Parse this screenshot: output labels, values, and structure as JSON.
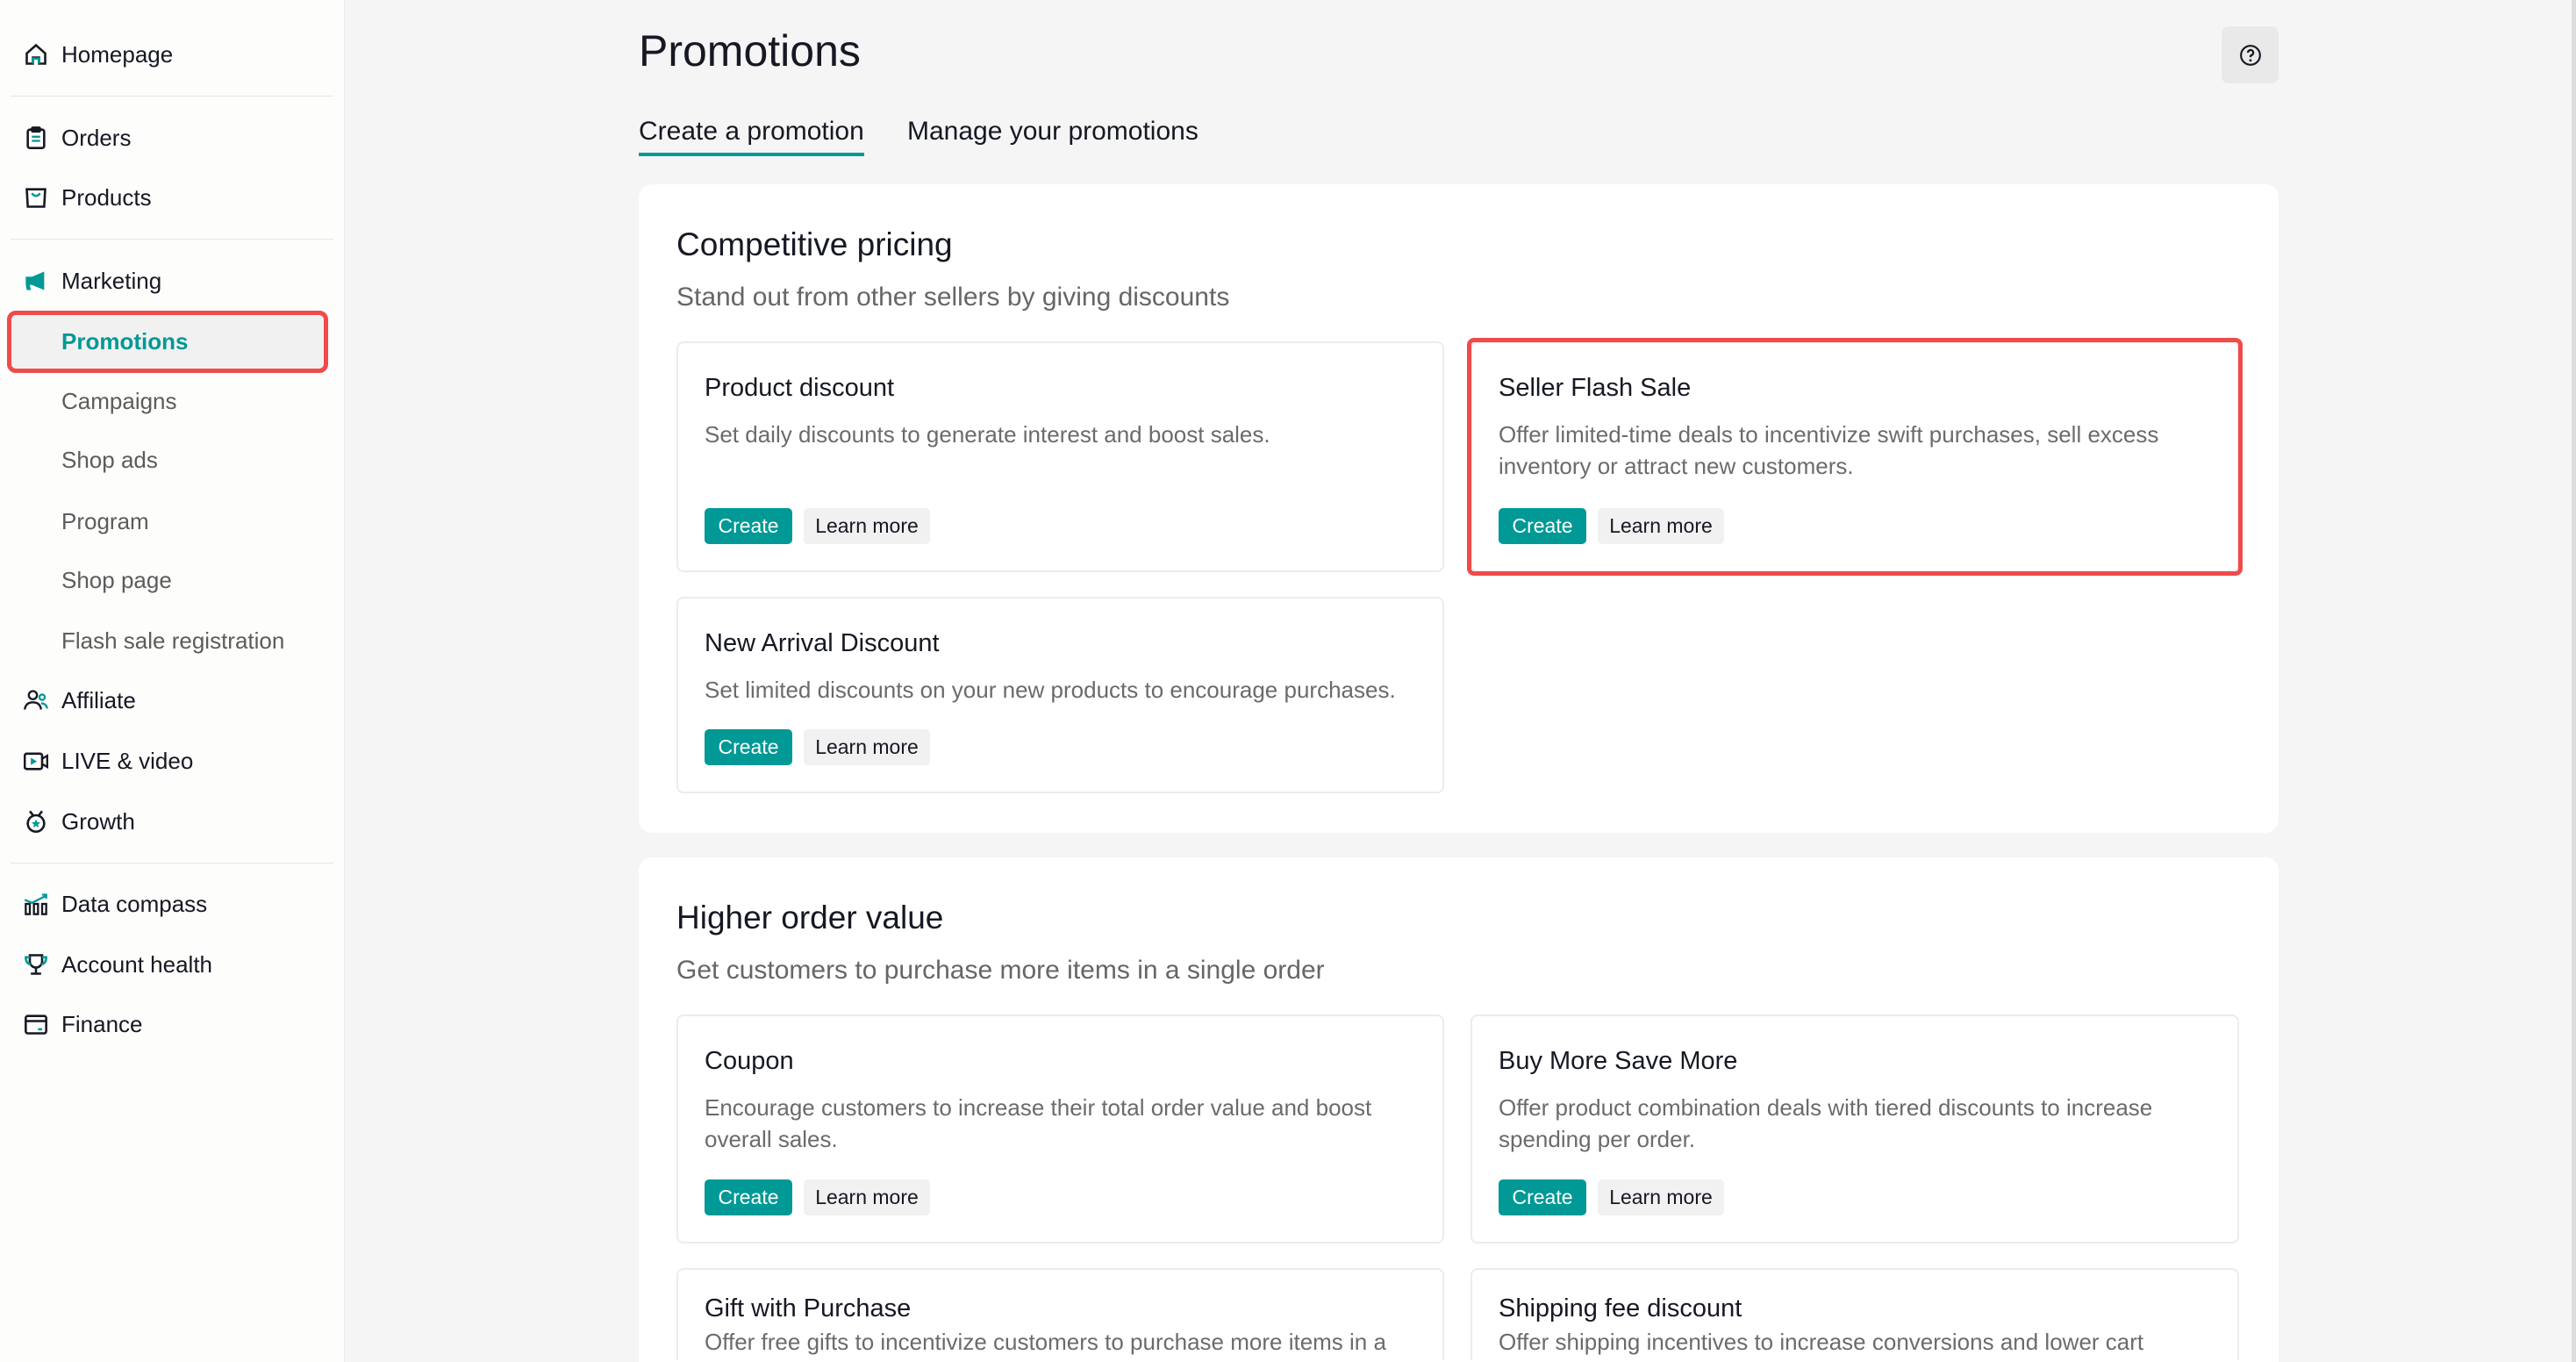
{
  "sidebar": {
    "items": [
      {
        "label": "Homepage",
        "icon": "home-icon"
      },
      {
        "label": "Orders",
        "icon": "clipboard-icon"
      },
      {
        "label": "Products",
        "icon": "shopping-bag-icon"
      },
      {
        "label": "Marketing",
        "icon": "megaphone-icon"
      },
      {
        "label": "Promotions",
        "active": true
      },
      {
        "label": "Campaigns"
      },
      {
        "label": "Shop ads"
      },
      {
        "label": "Program"
      },
      {
        "label": "Shop page"
      },
      {
        "label": "Flash sale registration"
      },
      {
        "label": "Affiliate",
        "icon": "people-icon"
      },
      {
        "label": "LIVE & video",
        "icon": "video-camera-icon"
      },
      {
        "label": "Growth",
        "icon": "medal-icon"
      },
      {
        "label": "Data compass",
        "icon": "bar-chart-icon"
      },
      {
        "label": "Account health",
        "icon": "trophy-icon"
      },
      {
        "label": "Finance",
        "icon": "card-icon"
      }
    ]
  },
  "header": {
    "title": "Promotions",
    "help_icon": "help-circle-icon"
  },
  "tabs": [
    {
      "label": "Create a promotion",
      "active": true
    },
    {
      "label": "Manage your promotions"
    }
  ],
  "colors": {
    "accent": "#009995",
    "highlight": "#f04b4b"
  },
  "sections": [
    {
      "title": "Competitive pricing",
      "subtitle": "Stand out from other sellers by giving discounts",
      "tiles": [
        {
          "title": "Product discount",
          "desc": "Set daily discounts to generate interest and boost sales.",
          "create": "Create",
          "learn": "Learn more"
        },
        {
          "title": "Seller Flash Sale",
          "desc": "Offer limited-time deals to incentivize swift purchases, sell excess inventory or attract new customers.",
          "create": "Create",
          "learn": "Learn more"
        },
        {
          "title": "New Arrival Discount",
          "desc": "Set limited discounts on your new products to encourage purchases.",
          "create": "Create",
          "learn": "Learn more"
        }
      ]
    },
    {
      "title": "Higher order value",
      "subtitle": "Get customers to purchase more items in a single order",
      "tiles": [
        {
          "title": "Coupon",
          "desc": "Encourage customers to increase their total order value and boost overall sales.",
          "create": "Create",
          "learn": "Learn more"
        },
        {
          "title": "Buy More Save More",
          "desc": "Offer product combination deals with tiered discounts to increase spending per order.",
          "create": "Create",
          "learn": "Learn more"
        },
        {
          "title": "Gift with Purchase",
          "desc": "Offer free gifts to incentivize customers to purchase more items in a"
        },
        {
          "title": "Shipping fee discount",
          "desc": "Offer shipping incentives to increase conversions and lower cart"
        }
      ]
    }
  ]
}
